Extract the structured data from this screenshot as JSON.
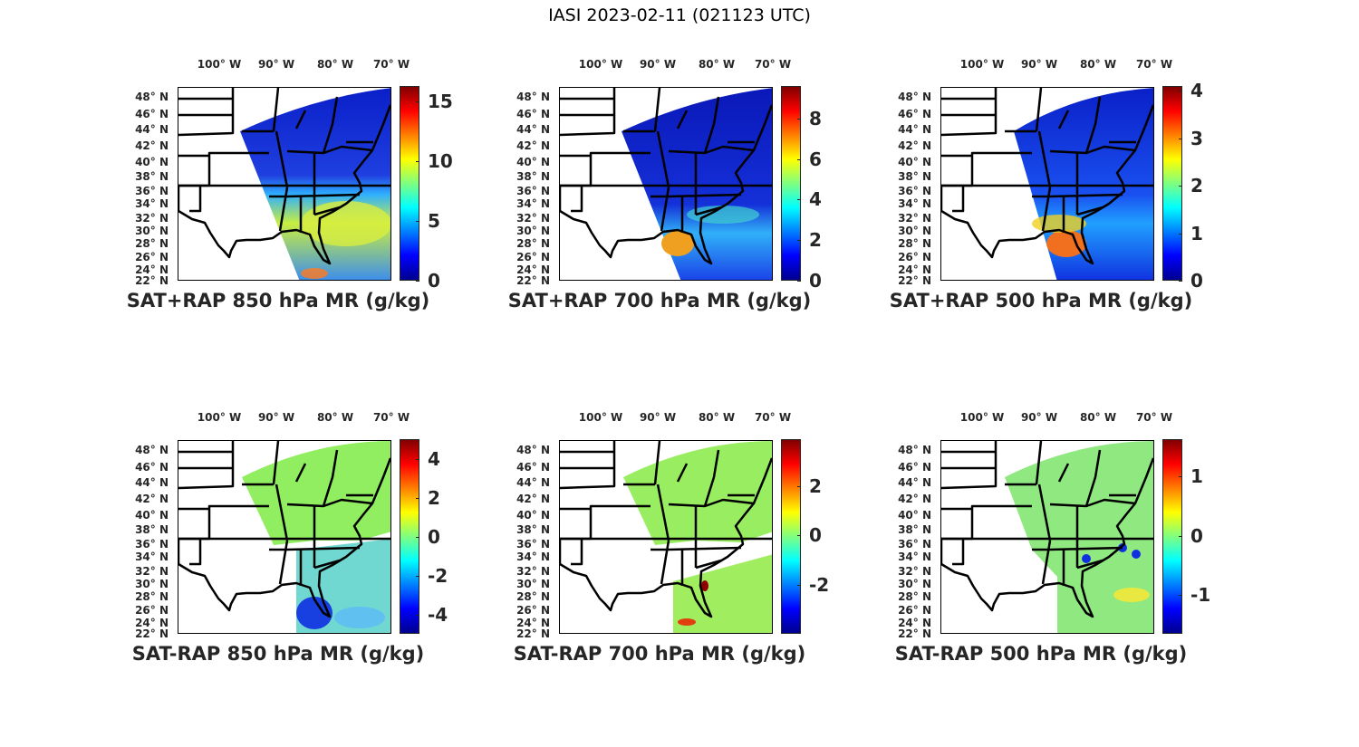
{
  "figure_title": "IASI 2023-02-11 (021123 UTC)",
  "lon_labels": [
    "100° W",
    "90° W",
    "80° W",
    "70° W"
  ],
  "lat_labels": [
    "48° N",
    "46° N",
    "44° N",
    "42° N",
    "40° N",
    "38° N",
    "36° N",
    "34° N",
    "32° N",
    "30° N",
    "28° N",
    "26° N",
    "24° N",
    "22° N"
  ],
  "colors": {
    "land_outline": "#000000",
    "text": "#262626",
    "colormap": "jet"
  },
  "panels": [
    {
      "title": "SAT+RAP 850 hPa MR (g/kg)",
      "kind": "total",
      "clim": [
        0,
        16.3
      ],
      "ticks": [
        0,
        5,
        10,
        15
      ],
      "tick_labels": [
        "0",
        "5",
        "10",
        "15"
      ]
    },
    {
      "title": "SAT+RAP 700 hPa MR (g/kg)",
      "kind": "total",
      "clim": [
        0,
        9.6
      ],
      "ticks": [
        0,
        2,
        4,
        6,
        8
      ],
      "tick_labels": [
        "0",
        "2",
        "4",
        "6",
        "8"
      ]
    },
    {
      "title": "SAT+RAP 500 hPa MR (g/kg)",
      "kind": "total",
      "clim": [
        0,
        4.1
      ],
      "ticks": [
        0,
        1,
        2,
        3,
        4
      ],
      "tick_labels": [
        "0",
        "1",
        "2",
        "3",
        "4"
      ]
    },
    {
      "title": "SAT-RAP 850 hPa MR (g/kg)",
      "kind": "diff",
      "clim": [
        -5,
        5
      ],
      "ticks": [
        -4,
        -2,
        0,
        2,
        4
      ],
      "tick_labels": [
        "-4",
        "-2",
        "0",
        "2",
        "4"
      ]
    },
    {
      "title": "SAT-RAP 700 hPa MR (g/kg)",
      "kind": "diff",
      "clim": [
        -4,
        3.9
      ],
      "ticks": [
        -2,
        0,
        2
      ],
      "tick_labels": [
        "-2",
        "0",
        "2"
      ]
    },
    {
      "title": "SAT-RAP 500 hPa MR (g/kg)",
      "kind": "diff",
      "clim": [
        -1.65,
        1.63
      ],
      "ticks": [
        -1,
        0,
        1
      ],
      "tick_labels": [
        "-1",
        "0",
        "1"
      ]
    }
  ]
}
